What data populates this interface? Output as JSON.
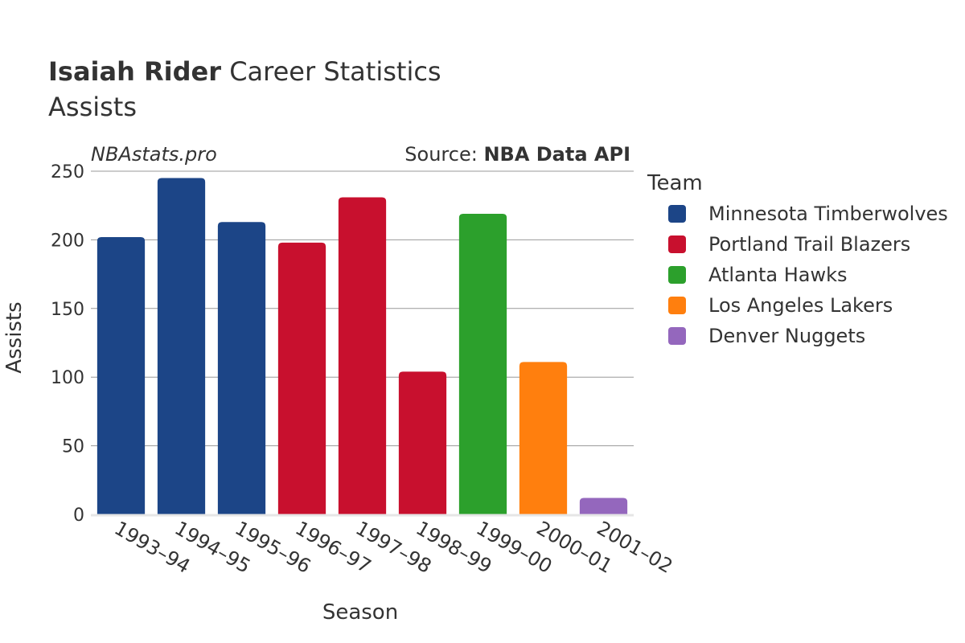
{
  "header": {
    "title_name": "Isaiah Rider",
    "title_rest": " Career Statistics",
    "subtitle": "Assists"
  },
  "watermark": "NBAstats.pro",
  "source": {
    "prefix": "Source: ",
    "name": "NBA Data API"
  },
  "legend": {
    "title": "Team",
    "placement": "right"
  },
  "chart_data": {
    "type": "bar",
    "xlabel": "Season",
    "ylabel": "Assists",
    "ylim": [
      0,
      250
    ],
    "yticks": [
      0,
      50,
      100,
      150,
      200,
      250
    ],
    "grid": true,
    "categories": [
      "1993–94",
      "1994–95",
      "1995–96",
      "1996–97",
      "1997–98",
      "1998–99",
      "1999–00",
      "2000–01",
      "2001–02"
    ],
    "values": [
      202,
      245,
      213,
      198,
      231,
      104,
      219,
      111,
      12
    ],
    "teams": [
      "Minnesota Timberwolves",
      "Minnesota Timberwolves",
      "Minnesota Timberwolves",
      "Portland Trail Blazers",
      "Portland Trail Blazers",
      "Portland Trail Blazers",
      "Atlanta Hawks",
      "Los Angeles Lakers",
      "Denver Nuggets"
    ],
    "series": [
      {
        "name": "Minnesota Timberwolves",
        "color": "#1c4587"
      },
      {
        "name": "Portland Trail Blazers",
        "color": "#c8102e"
      },
      {
        "name": "Atlanta Hawks",
        "color": "#2ca02c"
      },
      {
        "name": "Los Angeles Lakers",
        "color": "#ff7f0e"
      },
      {
        "name": "Denver Nuggets",
        "color": "#9467bd"
      }
    ]
  }
}
